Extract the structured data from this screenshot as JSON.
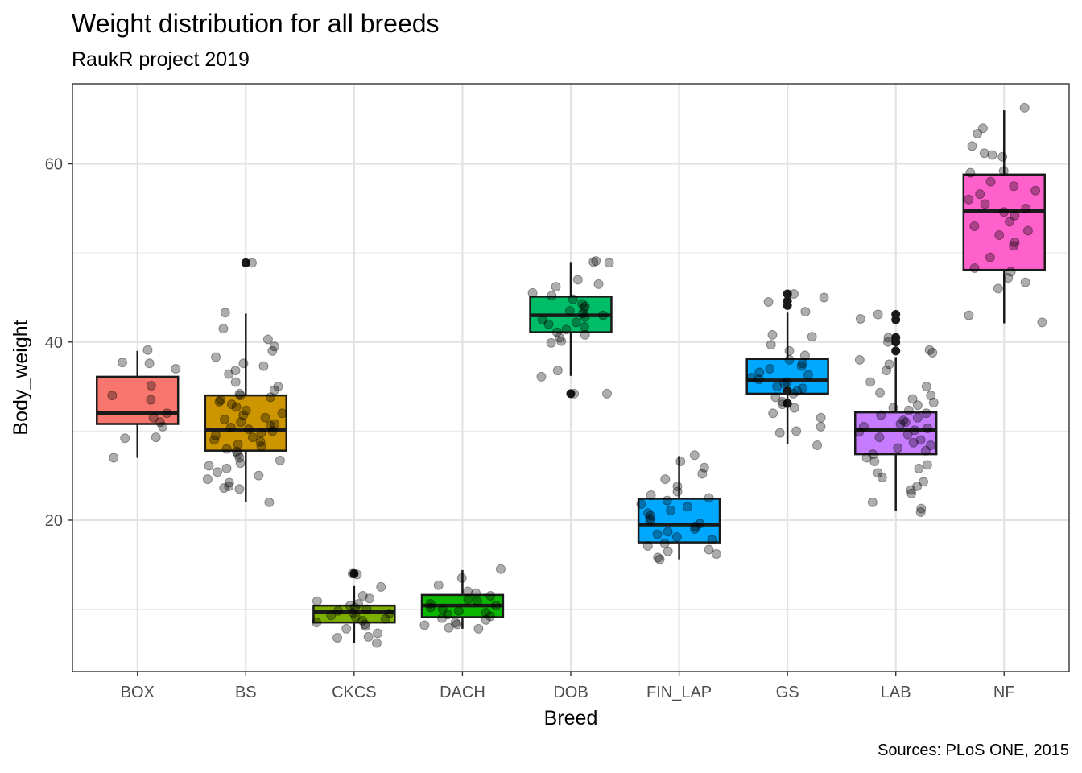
{
  "chart_data": {
    "type": "box",
    "title": "Weight distribution for all breeds",
    "subtitle": "RaukR project 2019",
    "caption": "Sources: PLoS ONE, 2015",
    "xlabel": "Breed",
    "ylabel": "Body_weight",
    "ylim": [
      3,
      69
    ],
    "y_ticks": [
      20,
      40,
      60
    ],
    "y_minor_ticks": [
      10,
      30,
      50
    ],
    "grid": true,
    "legend": "none",
    "categories": [
      "BOX",
      "BS",
      "CKCS",
      "DACH",
      "DOB",
      "FIN_LAP",
      "GS",
      "LAB",
      "NF"
    ],
    "boxes": [
      {
        "name": "BOX",
        "color": "#F8766D",
        "min": 27.0,
        "q1": 30.8,
        "median": 32.0,
        "q3": 36.1,
        "max": 39.0,
        "outliers": [],
        "points": [
          37.6,
          37.7,
          39.1,
          37.0,
          35.1,
          33.5,
          34.0,
          32.0,
          31.5,
          30.5,
          29.3,
          29.2,
          31.0,
          27.0
        ]
      },
      {
        "name": "BS",
        "color": "#CD9600",
        "min": 22.0,
        "q1": 27.8,
        "median": 30.1,
        "q3": 34.0,
        "max": 43.2,
        "outliers": [
          48.9
        ],
        "points": [
          48.9,
          43.3,
          41.5,
          40.3,
          39.5,
          39.0,
          38.3,
          37.6,
          37.3,
          36.8,
          36.4,
          35.5,
          35.0,
          34.6,
          34.2,
          34.0,
          33.8,
          33.5,
          33.3,
          33.0,
          32.7,
          32.3,
          32.0,
          31.8,
          31.5,
          31.3,
          31.0,
          30.8,
          30.6,
          30.4,
          30.2,
          30.0,
          29.8,
          29.5,
          29.3,
          29.0,
          28.8,
          28.5,
          28.3,
          28.0,
          27.7,
          27.4,
          27.0,
          26.7,
          26.4,
          26.1,
          25.8,
          25.4,
          25.0,
          24.6,
          24.2,
          23.8,
          23.5,
          23.6,
          22.0
        ]
      },
      {
        "name": "CKCS",
        "color": "#7CAE00",
        "min": 6.2,
        "q1": 8.5,
        "median": 9.7,
        "q3": 10.4,
        "max": 12.6,
        "outliers": [
          14.0
        ],
        "points": [
          14.0,
          13.9,
          12.5,
          11.5,
          11.2,
          10.9,
          10.6,
          10.4,
          10.2,
          10.0,
          9.8,
          9.6,
          9.5,
          9.3,
          9.1,
          8.9,
          8.7,
          8.5,
          8.3,
          8.1,
          7.8,
          7.3,
          6.9,
          6.8,
          6.2
        ]
      },
      {
        "name": "DACH",
        "color": "#0CB702",
        "min": 7.8,
        "q1": 9.1,
        "median": 10.4,
        "q3": 11.6,
        "max": 14.4,
        "outliers": [],
        "points": [
          14.5,
          13.5,
          12.7,
          12.0,
          11.8,
          11.5,
          11.1,
          10.9,
          10.6,
          10.4,
          10.2,
          10.0,
          9.8,
          9.6,
          9.4,
          9.2,
          9.0,
          8.8,
          8.5,
          8.3,
          8.2,
          7.9,
          7.8
        ]
      },
      {
        "name": "DOB",
        "color": "#00BE67",
        "min": 36.2,
        "q1": 41.1,
        "median": 43.0,
        "q3": 45.1,
        "max": 48.9,
        "outliers": [
          34.2
        ],
        "points": [
          49.1,
          49.0,
          48.9,
          47.0,
          46.5,
          46.2,
          45.5,
          45.2,
          44.8,
          44.3,
          44.0,
          43.8,
          43.5,
          43.2,
          43.0,
          42.8,
          42.5,
          42.2,
          42.0,
          41.7,
          41.4,
          41.1,
          40.8,
          40.5,
          40.1,
          39.9,
          36.8,
          36.1,
          34.2,
          34.2
        ]
      },
      {
        "name": "FIN_LAP",
        "color": "#00A9FF",
        "min": 15.6,
        "q1": 17.5,
        "median": 19.5,
        "q3": 22.4,
        "max": 27.2,
        "outliers": [],
        "points": [
          27.3,
          26.6,
          25.9,
          25.2,
          24.6,
          23.8,
          23.2,
          22.8,
          22.5,
          22.2,
          21.8,
          21.5,
          21.1,
          20.8,
          20.5,
          20.2,
          19.9,
          19.6,
          19.3,
          19.0,
          18.7,
          18.4,
          18.1,
          17.8,
          17.4,
          17.1,
          16.7,
          16.5,
          16.2,
          15.8,
          15.6
        ]
      },
      {
        "name": "GS",
        "color": "#00A9FF",
        "min": 28.5,
        "q1": 34.2,
        "median": 35.7,
        "q3": 38.1,
        "max": 43.3,
        "outliers": [
          45.4,
          44.6,
          44.1,
          34.5,
          33.1
        ],
        "points": [
          45.4,
          45.0,
          44.5,
          43.4,
          40.8,
          40.6,
          39.7,
          39.0,
          38.5,
          38.0,
          37.6,
          37.3,
          37.0,
          36.6,
          36.3,
          36.0,
          35.8,
          35.5,
          35.3,
          35.0,
          34.8,
          34.5,
          34.2,
          33.8,
          33.3,
          33.0,
          32.6,
          32.0,
          31.5,
          30.5,
          30.0,
          29.8,
          28.4
        ]
      },
      {
        "name": "LAB",
        "color": "#C77CFF",
        "min": 21.0,
        "q1": 27.4,
        "median": 30.1,
        "q3": 32.1,
        "max": 38.3,
        "outliers": [
          43.1,
          42.5,
          40.5,
          40.0,
          39.0
        ],
        "points": [
          43.1,
          42.6,
          40.5,
          40.0,
          39.1,
          38.8,
          38.0,
          37.5,
          36.8,
          35.5,
          35.0,
          34.3,
          34.0,
          33.6,
          33.2,
          32.9,
          32.6,
          32.3,
          32.0,
          31.8,
          31.5,
          31.2,
          31.0,
          30.8,
          30.5,
          30.3,
          30.1,
          29.9,
          29.6,
          29.3,
          29.0,
          28.7,
          28.4,
          28.1,
          27.8,
          27.4,
          27.0,
          26.6,
          26.2,
          25.8,
          25.3,
          24.8,
          24.3,
          23.8,
          23.4,
          23.0,
          22.0,
          21.3,
          20.9
        ]
      },
      {
        "name": "NF",
        "color": "#FF61CC",
        "min": 42.1,
        "q1": 48.1,
        "median": 54.7,
        "q3": 58.8,
        "max": 66.0,
        "outliers": [],
        "points": [
          66.3,
          64.0,
          63.4,
          62.0,
          61.2,
          61.0,
          60.8,
          59.2,
          59.0,
          58.0,
          57.5,
          57.0,
          56.6,
          56.0,
          55.5,
          55.0,
          54.6,
          54.2,
          53.5,
          53.0,
          52.5,
          52.0,
          51.2,
          50.8,
          49.5,
          48.3,
          47.9,
          47.2,
          46.7,
          46.0,
          43.0,
          42.2
        ]
      }
    ]
  }
}
